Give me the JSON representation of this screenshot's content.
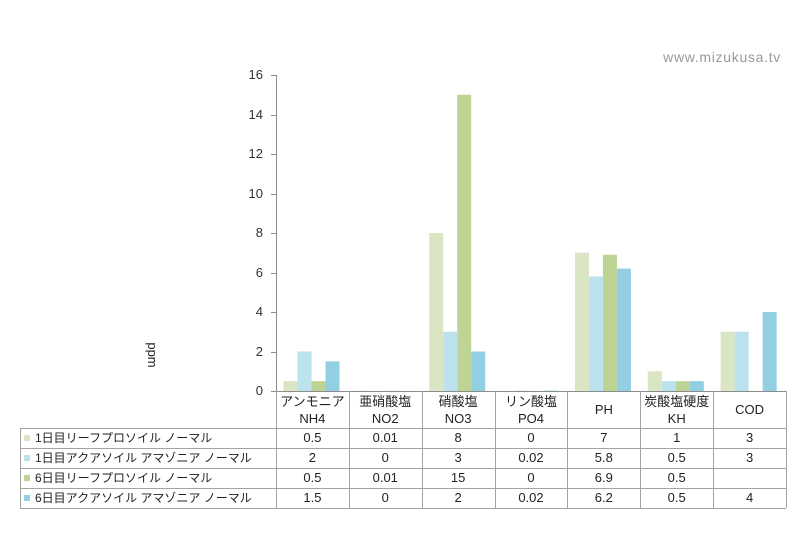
{
  "watermark": "www.mizukusa.tv",
  "chart_data": {
    "type": "bar",
    "title": "",
    "xlabel": "",
    "ylabel": "ppm",
    "ylim": [
      0,
      16
    ],
    "yticks": [
      0,
      2,
      4,
      6,
      8,
      10,
      12,
      14,
      16
    ],
    "grid": false,
    "legend": "table-left",
    "categories": [
      "アンモニア\nNH4",
      "亜硝酸塩\nNO2",
      "硝酸塩\nNO3",
      "リン酸塩\nPO4",
      "PH",
      "炭酸塩硬度\nKH",
      "COD"
    ],
    "series": [
      {
        "name": "1日目リーフプロソイル ノーマル",
        "color": "#dae5c3",
        "values": [
          0.5,
          0.01,
          8,
          0,
          7,
          1,
          3
        ]
      },
      {
        "name": "1日目アクアソイル アマゾニア ノーマル",
        "color": "#bce2ee",
        "values": [
          2,
          0,
          3,
          0.02,
          5.8,
          0.5,
          3
        ]
      },
      {
        "name": "6日目リーフプロソイル ノーマル",
        "color": "#bed495",
        "values": [
          0.5,
          0.01,
          15,
          0,
          6.9,
          0.5,
          null
        ]
      },
      {
        "name": "6日目アクアソイル アマゾニア ノーマル",
        "color": "#92cfe2",
        "values": [
          1.5,
          0,
          2,
          0.02,
          6.2,
          0.5,
          4
        ]
      }
    ]
  }
}
